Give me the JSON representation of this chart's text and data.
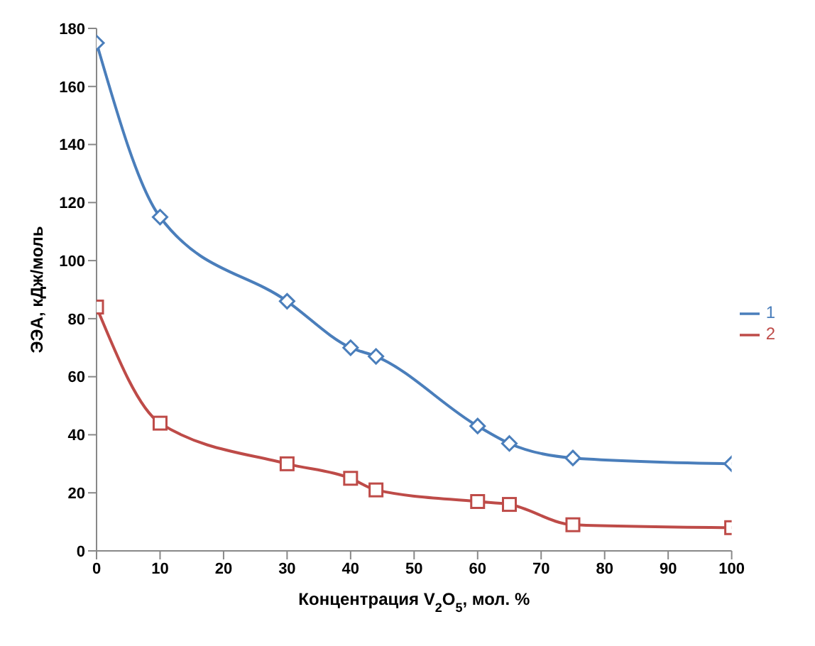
{
  "chart_data": {
    "type": "line",
    "xlabel": "Концентрация V$_{2}$O$_{5}$, мол. %",
    "ylabel": "ЭЭА, кДж/моль",
    "xlim": [
      0,
      100
    ],
    "xticks": [
      0,
      10,
      20,
      30,
      40,
      50,
      60,
      70,
      80,
      90,
      100
    ],
    "ylim": [
      0,
      180
    ],
    "yticks": [
      0,
      20,
      40,
      60,
      80,
      100,
      120,
      140,
      160,
      180
    ],
    "grid": false,
    "legend": "right",
    "series": [
      {
        "name": "1",
        "color": "#4a7ebb",
        "marker": "diamond",
        "x": [
          0,
          10,
          30,
          40,
          44,
          60,
          65,
          75,
          100
        ],
        "values": [
          175,
          115,
          86,
          70,
          67,
          43,
          37,
          32,
          30
        ]
      },
      {
        "name": "2",
        "color": "#be4b48",
        "marker": "square",
        "x": [
          0,
          10,
          30,
          40,
          44,
          60,
          65,
          75,
          100
        ],
        "values": [
          84,
          44,
          30,
          25,
          21,
          17,
          16,
          9,
          8
        ]
      }
    ]
  }
}
